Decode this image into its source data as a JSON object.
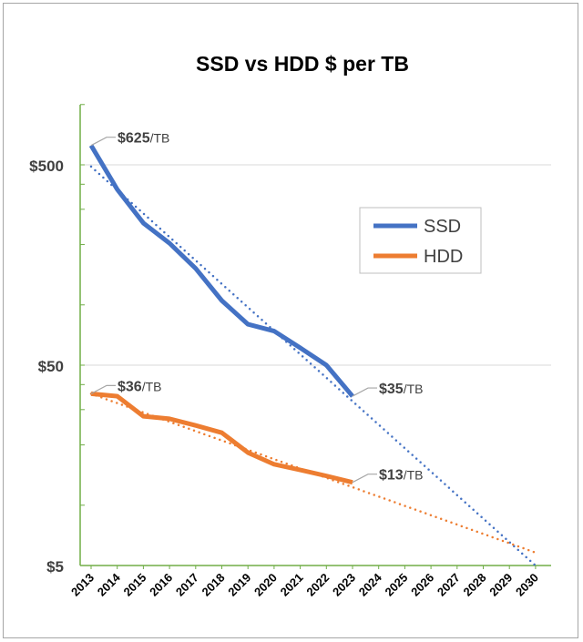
{
  "chart_data": {
    "type": "line",
    "title": "SSD vs HDD $ per TB",
    "x": [
      2013,
      2014,
      2015,
      2016,
      2017,
      2018,
      2019,
      2020,
      2021,
      2022,
      2023
    ],
    "x_ticks": [
      2013,
      2014,
      2015,
      2016,
      2017,
      2018,
      2019,
      2020,
      2021,
      2022,
      2023,
      2024,
      2025,
      2026,
      2027,
      2028,
      2029,
      2030
    ],
    "y_ticks": [
      {
        "value": 5,
        "label": "$5"
      },
      {
        "value": 50,
        "label": "$50"
      },
      {
        "value": 500,
        "label": "$500"
      }
    ],
    "ylim": [
      5,
      1000
    ],
    "yscale": "log",
    "grid": "horizontal major",
    "legend": "right",
    "series": [
      {
        "name": "SSD",
        "color": "#4472c4",
        "values": [
          625,
          377,
          256,
          203,
          152,
          105,
          80,
          74,
          61,
          50,
          35
        ],
        "trend": {
          "from": [
            2013,
            490
          ],
          "to": [
            2030,
            5
          ]
        },
        "labels": [
          {
            "x": 2013,
            "value": "$625",
            "unit": "/TB"
          },
          {
            "x": 2023,
            "value": "$35",
            "unit": "/TB"
          }
        ]
      },
      {
        "name": "HDD",
        "color": "#ed7d31",
        "values": [
          36,
          35,
          27.8,
          27,
          25,
          23,
          18.3,
          16,
          15,
          14,
          13
        ],
        "trend": {
          "from": [
            2013,
            36
          ],
          "to": [
            2030,
            5.8
          ]
        },
        "labels": [
          {
            "x": 2013,
            "value": "$36",
            "unit": "/TB"
          },
          {
            "x": 2023,
            "value": "$13",
            "unit": "/TB"
          }
        ]
      }
    ]
  }
}
